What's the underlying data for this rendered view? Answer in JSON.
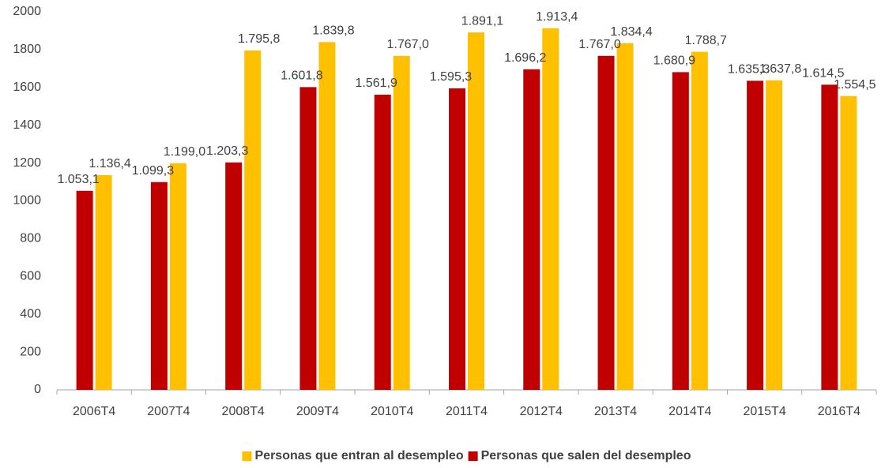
{
  "chart_data": {
    "type": "bar",
    "categories": [
      "2006T4",
      "2007T4",
      "2008T4",
      "2009T4",
      "2010T4",
      "2011T4",
      "2012T4",
      "2013T4",
      "2014T4",
      "2015T4",
      "2016T4"
    ],
    "series": [
      {
        "name": "Personas que entran al desempleo",
        "color": "#ffc000",
        "values": [
          1136.4,
          1199.0,
          1795.8,
          1839.8,
          1767.0,
          1891.1,
          1913.4,
          1834.4,
          1788.7,
          1637.8,
          1554.5
        ],
        "value_labels": [
          "1.136,4",
          "1.199,0",
          "1.795,8",
          "1.839,8",
          "1.767,0",
          "1.891,1",
          "1.913,4",
          "1.834,4",
          "1.788,7",
          "1.637,8",
          "1.554,5"
        ]
      },
      {
        "name": "Personas que salen del desempleo",
        "color": "#c00000",
        "values": [
          1053.1,
          1099.3,
          1203.3,
          1601.8,
          1561.9,
          1595.3,
          1696.2,
          1767.0,
          1680.9,
          1635.3,
          1614.5
        ],
        "value_labels": [
          "1.053,1",
          "1.099,3",
          "1.203,3",
          "1.601,8",
          "1.561,9",
          "1.595,3",
          "1.696,2",
          "1.767,0",
          "1.680,9",
          "1.635,3",
          "1.614,5"
        ]
      }
    ],
    "ylim": [
      0,
      2000
    ],
    "yticks": [
      0,
      200,
      400,
      600,
      800,
      1000,
      1200,
      1400,
      1600,
      1800,
      2000
    ],
    "legend": "bottom"
  }
}
